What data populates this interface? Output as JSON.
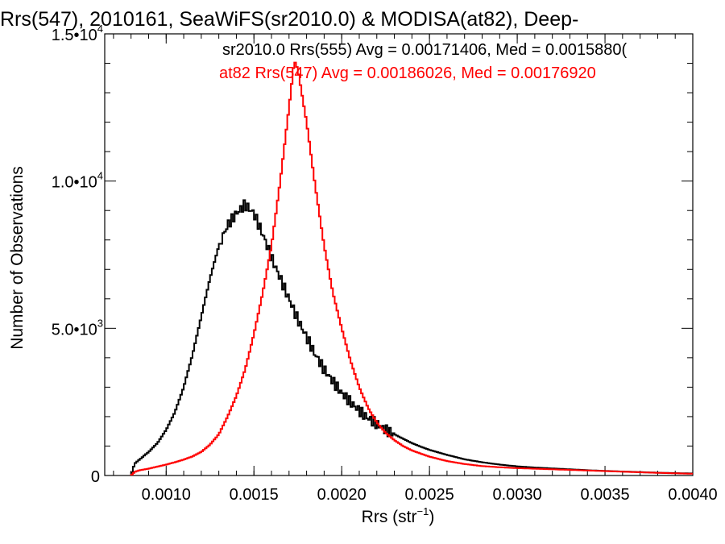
{
  "chart_data": {
    "type": "line",
    "title": "Rrs(547), 2010161, SeaWiFS(sr2010.0) & MODISA(at82), Deep-",
    "xlabel": "Rrs (str",
    "xlabel_exponent": "−1",
    "xlabel_close": ")",
    "ylabel": "Number of Observations",
    "xlim": [
      0.00065,
      0.004
    ],
    "ylim": [
      0,
      15000
    ],
    "grid": false,
    "legend_position": "top",
    "x_ticks": [
      {
        "value": 0.001,
        "label": "0.0010"
      },
      {
        "value": 0.0015,
        "label": "0.0015"
      },
      {
        "value": 0.002,
        "label": "0.0020"
      },
      {
        "value": 0.0025,
        "label": "0.0025"
      },
      {
        "value": 0.003,
        "label": "0.0030"
      },
      {
        "value": 0.0035,
        "label": "0.0035"
      },
      {
        "value": 0.004,
        "label": "0.0040"
      }
    ],
    "y_ticks": [
      {
        "value": 0,
        "mantissa": "0",
        "exponent": ""
      },
      {
        "value": 5000,
        "mantissa": "5.0•10",
        "exponent": "3"
      },
      {
        "value": 10000,
        "mantissa": "1.0•10",
        "exponent": "4"
      },
      {
        "value": 15000,
        "mantissa": "1.5•10",
        "exponent": "4"
      }
    ],
    "series": [
      {
        "name": "sr2010.0 Rrs(555) Avg = 0.00171406, Med = 0.0015880(",
        "color": "#000000",
        "points": [
          [
            0.0008,
            0
          ],
          [
            0.00082,
            400
          ],
          [
            0.00085,
            550
          ],
          [
            0.0009,
            800
          ],
          [
            0.00095,
            1100
          ],
          [
            0.001,
            1550
          ],
          [
            0.00105,
            2150
          ],
          [
            0.0011,
            3000
          ],
          [
            0.00115,
            4100
          ],
          [
            0.0012,
            5400
          ],
          [
            0.00125,
            6700
          ],
          [
            0.0013,
            7800
          ],
          [
            0.00135,
            8500
          ],
          [
            0.0014,
            8900
          ],
          [
            0.00145,
            9200
          ],
          [
            0.0015,
            8900
          ],
          [
            0.00155,
            8200
          ],
          [
            0.0016,
            7400
          ],
          [
            0.00165,
            6700
          ],
          [
            0.0017,
            6000
          ],
          [
            0.00175,
            5300
          ],
          [
            0.0018,
            4700
          ],
          [
            0.00185,
            4100
          ],
          [
            0.0019,
            3600
          ],
          [
            0.00195,
            3200
          ],
          [
            0.002,
            2800
          ],
          [
            0.00205,
            2500
          ],
          [
            0.0021,
            2200
          ],
          [
            0.00215,
            1950
          ],
          [
            0.0022,
            1750
          ],
          [
            0.00225,
            1550
          ],
          [
            0.0023,
            1400
          ],
          [
            0.00235,
            1250
          ],
          [
            0.0024,
            1100
          ],
          [
            0.00245,
            980
          ],
          [
            0.0025,
            870
          ],
          [
            0.0026,
            700
          ],
          [
            0.0027,
            550
          ],
          [
            0.0028,
            450
          ],
          [
            0.0029,
            370
          ],
          [
            0.003,
            310
          ],
          [
            0.0031,
            270
          ],
          [
            0.0032,
            240
          ],
          [
            0.0033,
            210
          ],
          [
            0.0034,
            180
          ],
          [
            0.0035,
            155
          ],
          [
            0.0036,
            135
          ],
          [
            0.0037,
            115
          ],
          [
            0.0038,
            95
          ],
          [
            0.0039,
            80
          ],
          [
            0.004,
            70
          ]
        ]
      },
      {
        "name": "at82 Rrs(547) Avg = 0.00186026, Med = 0.00176920",
        "color": "#ff0000",
        "points": [
          [
            0.0008,
            0
          ],
          [
            0.00082,
            120
          ],
          [
            0.00085,
            180
          ],
          [
            0.0009,
            230
          ],
          [
            0.00095,
            300
          ],
          [
            0.001,
            370
          ],
          [
            0.00105,
            450
          ],
          [
            0.0011,
            540
          ],
          [
            0.00115,
            650
          ],
          [
            0.0012,
            800
          ],
          [
            0.00125,
            1050
          ],
          [
            0.0013,
            1400
          ],
          [
            0.00135,
            2000
          ],
          [
            0.0014,
            2700
          ],
          [
            0.00145,
            3600
          ],
          [
            0.0015,
            4800
          ],
          [
            0.00155,
            6200
          ],
          [
            0.0016,
            7800
          ],
          [
            0.00165,
            10000
          ],
          [
            0.0017,
            12500
          ],
          [
            0.00173,
            14100
          ],
          [
            0.00175,
            13800
          ],
          [
            0.0018,
            12000
          ],
          [
            0.00185,
            9800
          ],
          [
            0.0019,
            7800
          ],
          [
            0.00195,
            6200
          ],
          [
            0.002,
            5000
          ],
          [
            0.00205,
            3900
          ],
          [
            0.0021,
            3000
          ],
          [
            0.00215,
            2300
          ],
          [
            0.0022,
            1800
          ],
          [
            0.00225,
            1450
          ],
          [
            0.0023,
            1200
          ],
          [
            0.00235,
            1000
          ],
          [
            0.0024,
            850
          ],
          [
            0.0025,
            640
          ],
          [
            0.0026,
            490
          ],
          [
            0.0027,
            390
          ],
          [
            0.0028,
            320
          ],
          [
            0.0029,
            280
          ],
          [
            0.003,
            250
          ],
          [
            0.0031,
            230
          ],
          [
            0.0032,
            210
          ],
          [
            0.0033,
            190
          ],
          [
            0.0034,
            170
          ],
          [
            0.0035,
            150
          ],
          [
            0.0036,
            130
          ],
          [
            0.0037,
            110
          ],
          [
            0.0038,
            90
          ],
          [
            0.0039,
            75
          ],
          [
            0.004,
            60
          ]
        ]
      }
    ]
  }
}
